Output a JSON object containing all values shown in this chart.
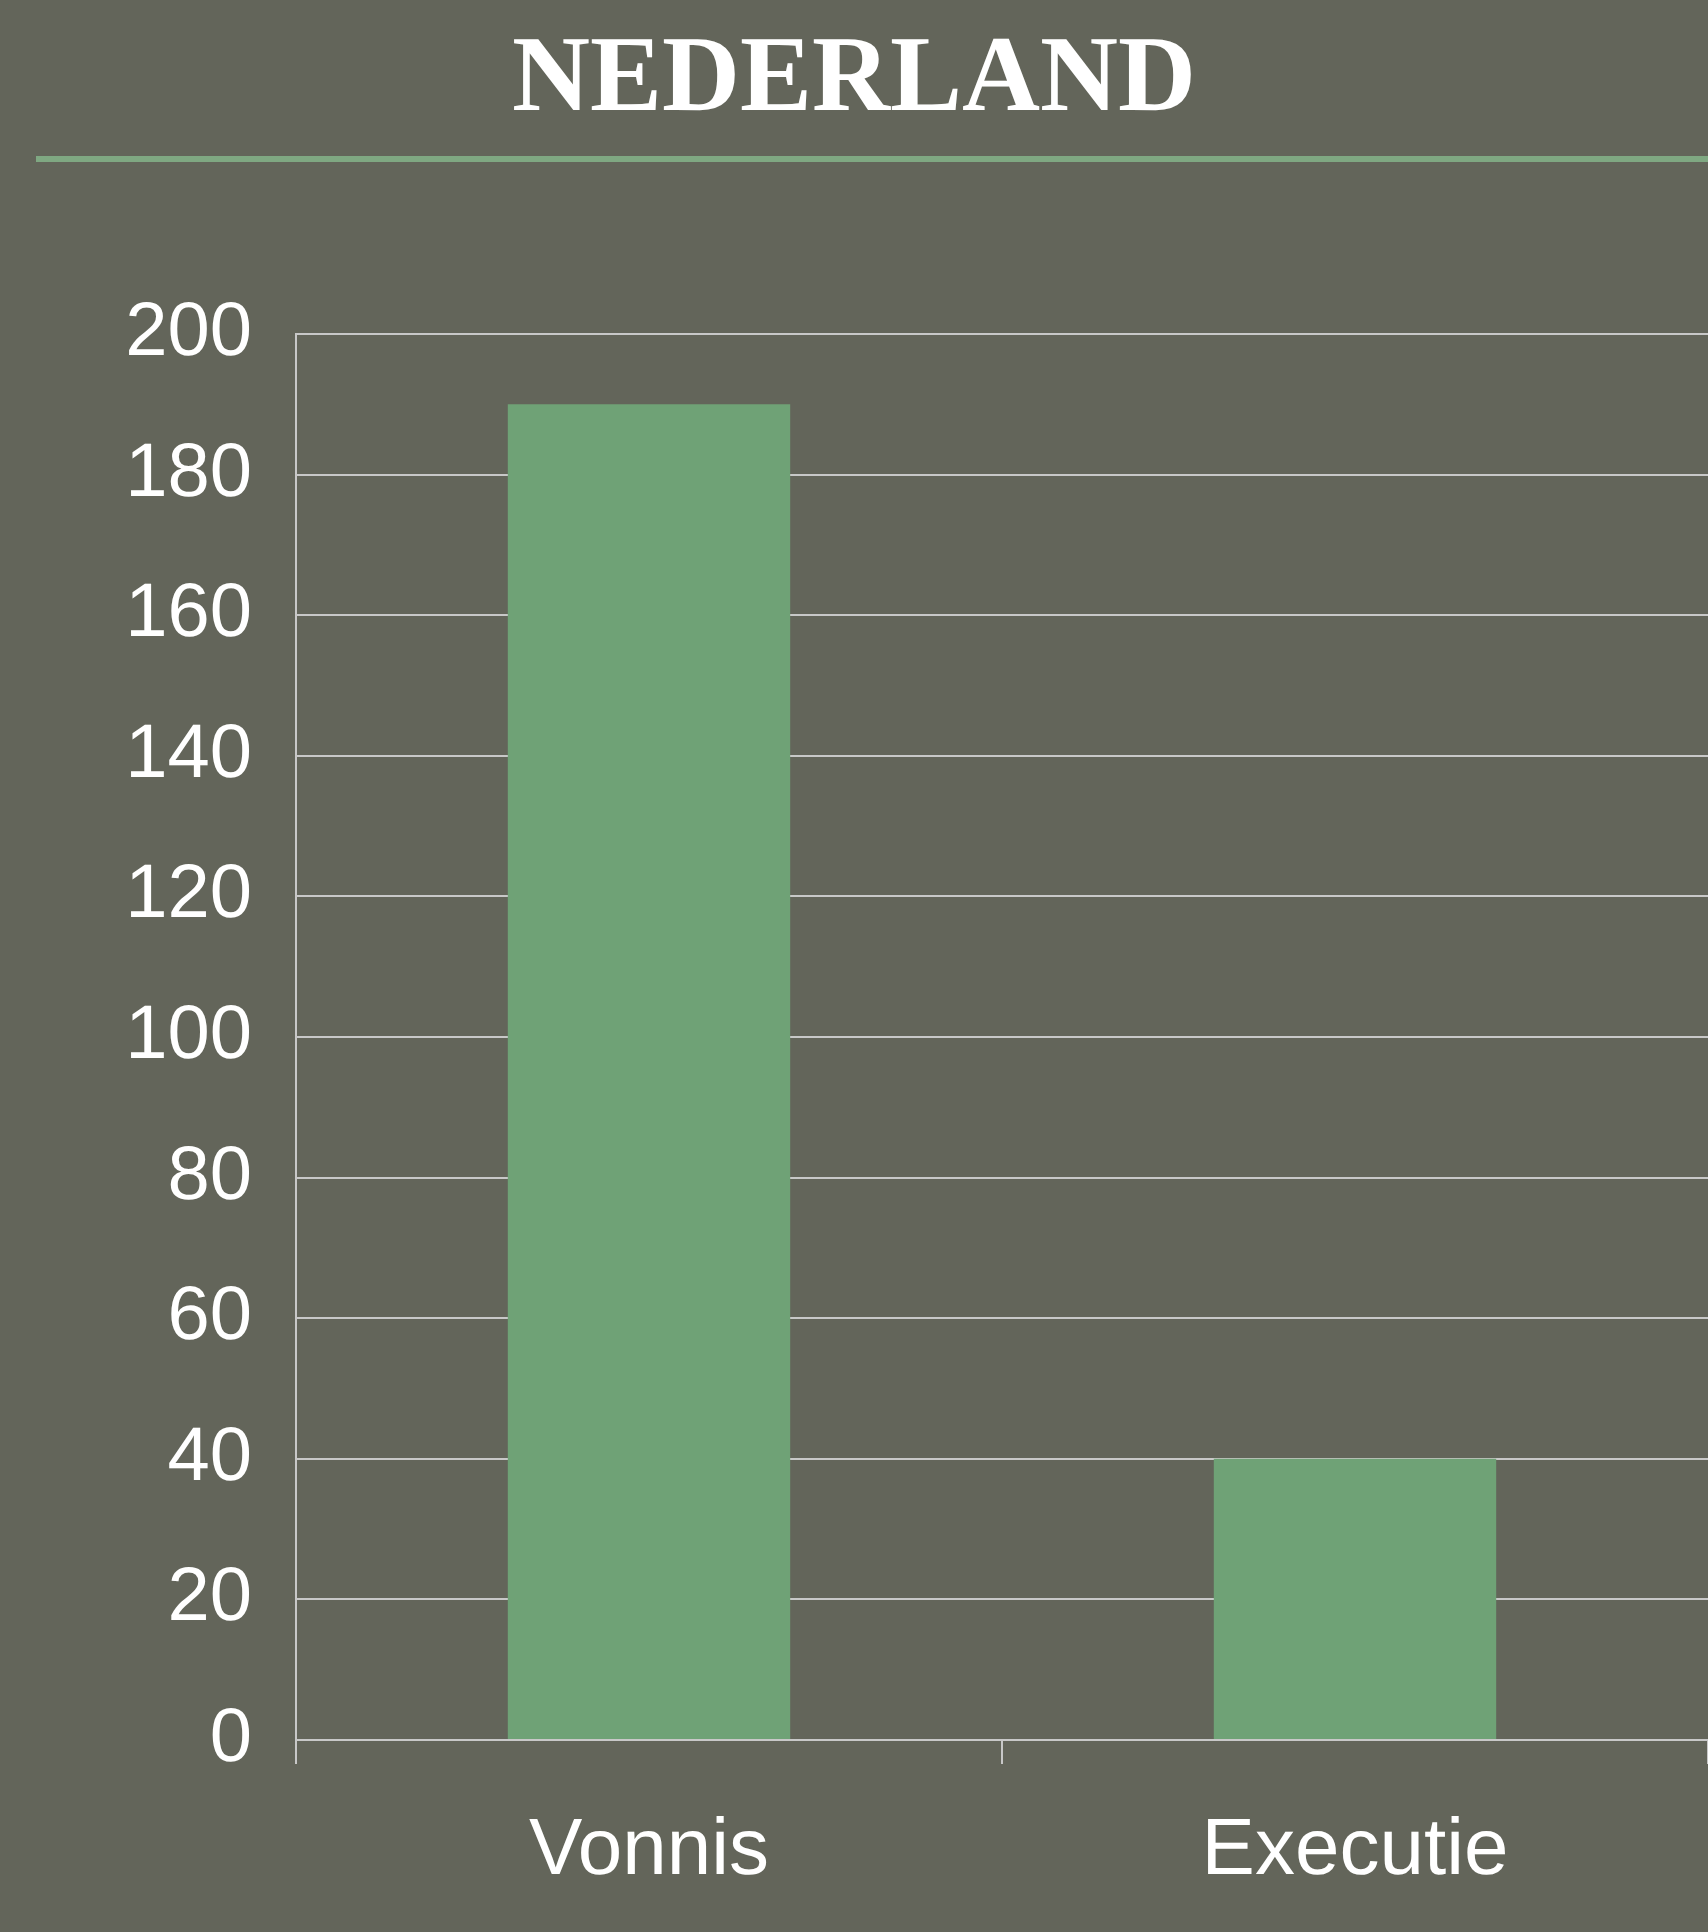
{
  "chart_data": {
    "type": "bar",
    "title": "NEDERLAND",
    "categories": [
      "Vonnis",
      "Executie"
    ],
    "values": [
      190,
      40
    ],
    "color": "#6fa276",
    "ylim": [
      0,
      200
    ],
    "yticks": [
      0,
      20,
      40,
      60,
      80,
      100,
      120,
      140,
      160,
      180,
      200
    ],
    "grid": "y",
    "legend": false
  }
}
